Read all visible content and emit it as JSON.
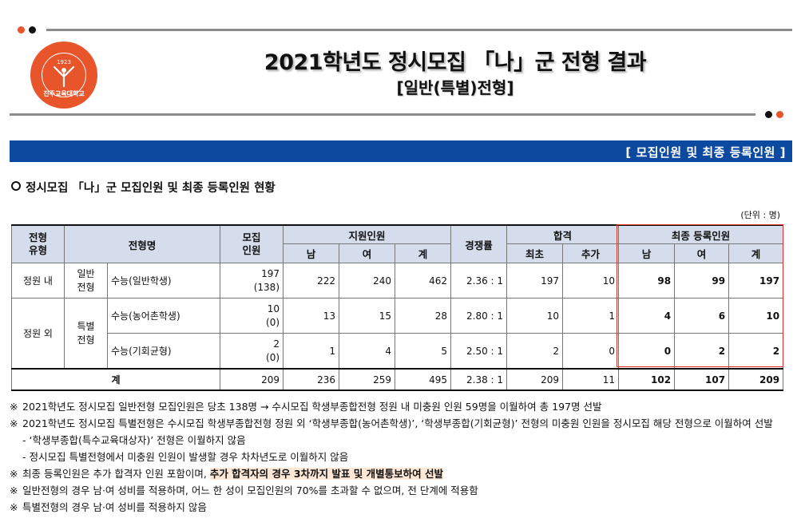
{
  "header": {
    "title": "2021학년도 정시모집 「나」군 전형 결과",
    "subtitle": "[일반(특별)전형]",
    "logo": {
      "year": "1923",
      "name": "진주교육대학교",
      "color": "#e8552a"
    }
  },
  "banner": {
    "label": "[ 모집인원 및 최종 등록인원 ]",
    "color": "#0b4a9e"
  },
  "section_title": "정시모집 「나」군 모집인원 및 최종 등록인원 현황",
  "unit": "(단위 : 명)",
  "table": {
    "headers": {
      "type": "전형\n유형",
      "name": "전형명",
      "quota": "모집\n인원",
      "applicants": "지원인원",
      "competition": "경쟁률",
      "passed": "합격",
      "registered": "최종 등록인원",
      "male": "남",
      "female": "여",
      "total": "계",
      "first": "최초",
      "extra": "추가"
    },
    "groups": {
      "regular_in": "정원 내",
      "regular_out": "정원 외",
      "general": "일반\n전형",
      "special": "특별\n전형"
    },
    "rows": [
      {
        "name": "수능(일반학생)",
        "quota": "197",
        "quota_sub": "(138)",
        "app_m": "222",
        "app_f": "240",
        "app_t": "462",
        "ratio": "2.36 : 1",
        "first": "197",
        "extra": "10",
        "reg_m": "98",
        "reg_f": "99",
        "reg_t": "197"
      },
      {
        "name": "수능(농어촌학생)",
        "quota": "10",
        "quota_sub": "(0)",
        "app_m": "13",
        "app_f": "15",
        "app_t": "28",
        "ratio": "2.80 : 1",
        "first": "10",
        "extra": "1",
        "reg_m": "4",
        "reg_f": "6",
        "reg_t": "10"
      },
      {
        "name": "수능(기회균형)",
        "quota": "2",
        "quota_sub": "(0)",
        "app_m": "1",
        "app_f": "4",
        "app_t": "5",
        "ratio": "2.50 : 1",
        "first": "2",
        "extra": "0",
        "reg_m": "0",
        "reg_f": "2",
        "reg_t": "2"
      }
    ],
    "total": {
      "label": "계",
      "quota": "209",
      "app_m": "236",
      "app_f": "259",
      "app_t": "495",
      "ratio": "2.38 : 1",
      "first": "209",
      "extra": "11",
      "reg_m": "102",
      "reg_f": "107",
      "reg_t": "209"
    }
  },
  "notes": {
    "mark": "※",
    "n1": "2021학년도 정시모집 일반전형 모집인원은 당초 138명 → 수시모집 학생부종합전형 정원 내 미충원 인원 59명을 이월하여 총 197명 선발",
    "n2": "2021학년도 정시모집 특별전형은 수시모집 학생부종합전형 정원 외 ‘학생부종합(농어촌학생)’, ‘학생부종합(기회균형)’ 전형의 미충원 인원을 정시모집 해당 전형으로 이월하여 선발",
    "n2a": "- ‘학생부종합(특수교육대상자)’ 전형은 이월하지 않음",
    "n2b": "- 정시모집 특별전형에서 미충원 인원이 발생할 경우 차차년도로 이월하지 않음",
    "n3_pre": "최종 등록인원은 추가 합격자 인원 포함이며, ",
    "n3_hl": "추가 합격자의 경우 3차까지 발표 및 개별통보하여 선발",
    "n4": "일반전형의 경우 남·여 성비를 적용하며, 어느 한 성이 모집인원의 70%를 초과할 수 없으며, 전 단계에 적용함",
    "n5": "특별전형의 경우 남·여 성비를 적용하지 않음"
  }
}
